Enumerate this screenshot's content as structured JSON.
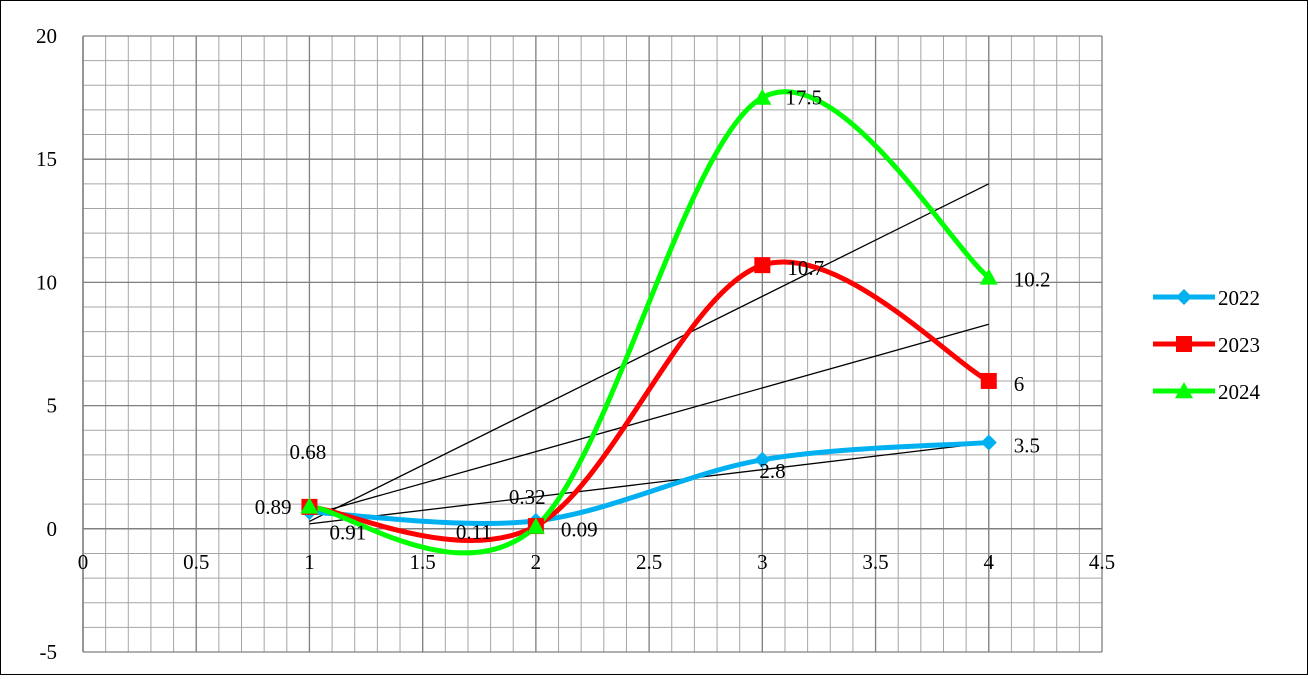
{
  "chart_data": {
    "type": "line",
    "title": "",
    "xlabel": "",
    "ylabel": "",
    "xlim": [
      0,
      4.5
    ],
    "ylim": [
      -5,
      20
    ],
    "x_ticks": [
      "0",
      "0.5",
      "1",
      "1.5",
      "2",
      "2.5",
      "3",
      "3.5",
      "4",
      "4.5"
    ],
    "y_ticks": [
      "20",
      "15",
      "10",
      "5",
      "0",
      "-5"
    ],
    "grid": true,
    "smooth": true,
    "legend_position": "right",
    "series": [
      {
        "name": "2022",
        "color": "#00b0f0",
        "marker": "diamond",
        "x": [
          1,
          2,
          3,
          4
        ],
        "y": [
          0.68,
          0.32,
          2.8,
          3.5
        ],
        "labels": [
          "0.68",
          "0.32",
          "2.8",
          "3.5"
        ]
      },
      {
        "name": "2023",
        "color": "#ff0000",
        "marker": "square",
        "x": [
          1,
          2,
          3,
          4
        ],
        "y": [
          0.89,
          0.11,
          10.7,
          6
        ],
        "labels": [
          "0.89",
          "0.11",
          "10.7",
          "6"
        ]
      },
      {
        "name": "2024",
        "color": "#00ff00",
        "marker": "triangle",
        "x": [
          1,
          2,
          3,
          4
        ],
        "y": [
          0.91,
          0.09,
          17.5,
          10.2
        ],
        "labels": [
          "0.91",
          "0.09",
          "17.5",
          "10.2"
        ]
      }
    ],
    "trendlines": [
      {
        "series": "2022",
        "color": "#000000",
        "x": [
          1,
          4
        ],
        "y": [
          0.2,
          3.5
        ]
      },
      {
        "series": "2023",
        "color": "#000000",
        "x": [
          1,
          4
        ],
        "y": [
          0.55,
          8.3
        ]
      },
      {
        "series": "2024",
        "color": "#000000",
        "x": [
          1,
          4
        ],
        "y": [
          0.3,
          14
        ]
      }
    ]
  }
}
